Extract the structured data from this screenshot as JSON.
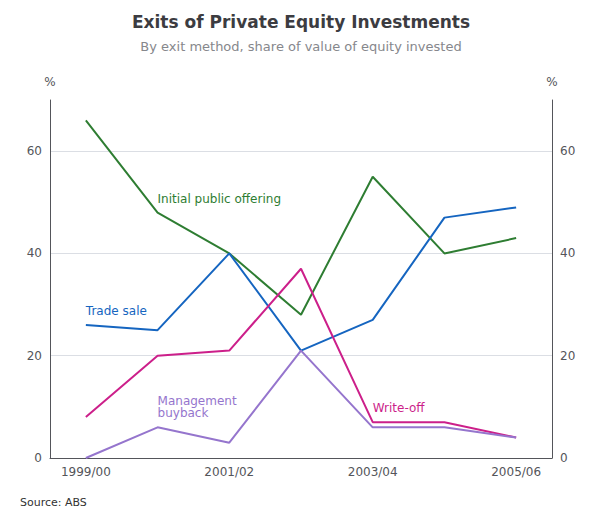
{
  "chart_data": {
    "type": "line",
    "title": "Exits of Private Equity Investments",
    "subtitle": "By exit method, share of value of equity invested",
    "source": "Source: ABS",
    "categories": [
      "1999/00",
      null,
      "2001/02",
      null,
      "2003/04",
      null,
      "2005/06"
    ],
    "series": [
      {
        "name": "Initial public offering",
        "color": "#2e7d32",
        "values": [
          66,
          48,
          40,
          28,
          55,
          40,
          43
        ]
      },
      {
        "name": "Trade sale",
        "color": "#1565c0",
        "values": [
          26,
          25,
          40,
          21,
          27,
          47,
          49
        ]
      },
      {
        "name": "Write-off",
        "color": "#cc1f8a",
        "values": [
          8,
          20,
          21,
          37,
          7,
          7,
          4
        ]
      },
      {
        "name": "Management\nbuyback",
        "color": "#9575cd",
        "values": [
          0,
          6,
          3,
          21,
          6,
          6,
          4
        ]
      }
    ],
    "ylabel": "%",
    "ylim": [
      0,
      70
    ],
    "yticks": [
      0,
      20,
      40,
      60
    ],
    "y2label": "%",
    "y2lim": [
      0,
      70
    ],
    "y2ticks": [
      0,
      20,
      40,
      60
    ],
    "grid": true,
    "legend": false
  }
}
